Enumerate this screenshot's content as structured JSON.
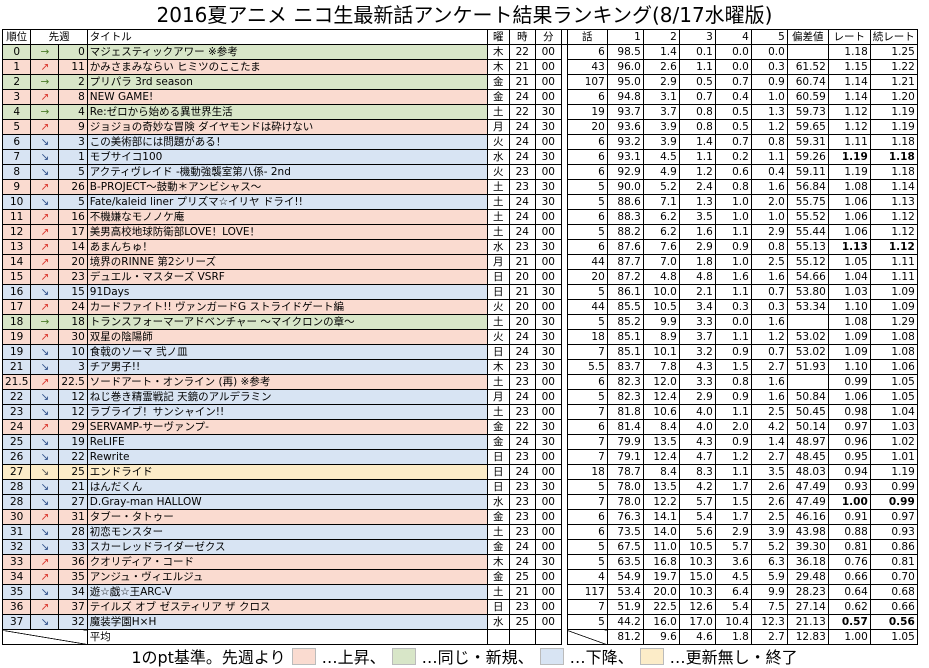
{
  "title": "2016夏アニメ ニコ生最新話アンケート結果ランキング(8/17水曜版)",
  "columns": {
    "rank": "順位",
    "prev": "先週",
    "title": "タイトル",
    "day": "曜",
    "hour": "時",
    "minute": "分",
    "episode": "話",
    "c1": "1",
    "c2": "2",
    "c3": "3",
    "c4": "4",
    "c5": "5",
    "deviation": "偏差値",
    "rate": "レート",
    "cont_rate": "続レート"
  },
  "colors": {
    "up": "#fadbd0",
    "same": "#d8e6c8",
    "down": "#d8e4f3",
    "none": "#fcecc8"
  },
  "rows": [
    {
      "s": "same",
      "rk": "0",
      "ar": "→",
      "pr": "0",
      "ti": "マジェスティックアワー ※参考",
      "d": "木",
      "h": "22",
      "m": "00",
      "ep": "6",
      "v1": "98.5",
      "v2": "1.4",
      "v3": "0.1",
      "v4": "0.0",
      "v5": "0.0",
      "dv": "",
      "rt": "1.18",
      "cr": "1.25"
    },
    {
      "s": "up",
      "rk": "1",
      "ar": "↗",
      "pr": "11",
      "ti": "かみさまみならい ヒミツのここたま",
      "d": "木",
      "h": "21",
      "m": "00",
      "ep": "43",
      "v1": "96.0",
      "v2": "2.6",
      "v3": "1.1",
      "v4": "0.0",
      "v5": "0.3",
      "dv": "61.52",
      "rt": "1.15",
      "cr": "1.22"
    },
    {
      "s": "same",
      "rk": "2",
      "ar": "→",
      "pr": "2",
      "ti": "プリパラ 3rd season",
      "d": "金",
      "h": "21",
      "m": "00",
      "ep": "107",
      "v1": "95.0",
      "v2": "2.9",
      "v3": "0.5",
      "v4": "0.7",
      "v5": "0.9",
      "dv": "60.74",
      "rt": "1.14",
      "cr": "1.21"
    },
    {
      "s": "up",
      "rk": "3",
      "ar": "↗",
      "pr": "8",
      "ti": "NEW GAME!",
      "d": "金",
      "h": "24",
      "m": "00",
      "ep": "6",
      "v1": "94.8",
      "v2": "3.1",
      "v3": "0.7",
      "v4": "0.4",
      "v5": "1.0",
      "dv": "60.59",
      "rt": "1.14",
      "cr": "1.20"
    },
    {
      "s": "same",
      "rk": "4",
      "ar": "→",
      "pr": "4",
      "ti": "Re:ゼロから始める異世界生活",
      "d": "土",
      "h": "22",
      "m": "30",
      "ep": "19",
      "v1": "93.7",
      "v2": "3.7",
      "v3": "0.8",
      "v4": "0.5",
      "v5": "1.3",
      "dv": "59.73",
      "rt": "1.12",
      "cr": "1.19"
    },
    {
      "s": "up",
      "rk": "5",
      "ar": "↗",
      "pr": "9",
      "ti": "ジョジョの奇妙な冒険 ダイヤモンドは砕けない",
      "d": "月",
      "h": "24",
      "m": "30",
      "ep": "20",
      "v1": "93.6",
      "v2": "3.9",
      "v3": "0.8",
      "v4": "0.5",
      "v5": "1.2",
      "dv": "59.65",
      "rt": "1.12",
      "cr": "1.19"
    },
    {
      "s": "down",
      "rk": "6",
      "ar": "↘",
      "pr": "3",
      "ti": "この美術部には問題がある！",
      "d": "火",
      "h": "24",
      "m": "00",
      "ep": "6",
      "v1": "93.2",
      "v2": "3.9",
      "v3": "1.4",
      "v4": "0.7",
      "v5": "0.8",
      "dv": "59.31",
      "rt": "1.11",
      "cr": "1.18"
    },
    {
      "s": "down",
      "rk": "7",
      "ar": "↘",
      "pr": "1",
      "ti": "モブサイコ100",
      "d": "水",
      "h": "24",
      "m": "30",
      "ep": "6",
      "v1": "93.1",
      "v2": "4.5",
      "v3": "1.1",
      "v4": "0.2",
      "v5": "1.1",
      "dv": "59.26",
      "rt": "1.19",
      "cr": "1.18",
      "bold": true
    },
    {
      "s": "down",
      "rk": "8",
      "ar": "↘",
      "pr": "5",
      "ti": "アクティヴレイド -機動強襲室第八係- 2nd",
      "d": "火",
      "h": "23",
      "m": "00",
      "ep": "6",
      "v1": "92.9",
      "v2": "4.9",
      "v3": "1.2",
      "v4": "0.6",
      "v5": "0.4",
      "dv": "59.11",
      "rt": "1.19",
      "cr": "1.18"
    },
    {
      "s": "up",
      "rk": "9",
      "ar": "↗",
      "pr": "26",
      "ti": "B-PROJECT～鼓動＊アンビシャス～",
      "d": "土",
      "h": "23",
      "m": "30",
      "ep": "5",
      "v1": "90.0",
      "v2": "5.2",
      "v3": "2.4",
      "v4": "0.8",
      "v5": "1.6",
      "dv": "56.84",
      "rt": "1.08",
      "cr": "1.14"
    },
    {
      "s": "down",
      "rk": "10",
      "ar": "↘",
      "pr": "5",
      "ti": "Fate/kaleid liner プリズマ☆イリヤ ドライ!!",
      "d": "土",
      "h": "24",
      "m": "30",
      "ep": "5",
      "v1": "88.6",
      "v2": "7.1",
      "v3": "1.3",
      "v4": "1.0",
      "v5": "2.0",
      "dv": "55.75",
      "rt": "1.06",
      "cr": "1.13"
    },
    {
      "s": "up",
      "rk": "11",
      "ar": "↗",
      "pr": "16",
      "ti": "不機嫌なモノノケ庵",
      "d": "土",
      "h": "24",
      "m": "00",
      "ep": "6",
      "v1": "88.3",
      "v2": "6.2",
      "v3": "3.5",
      "v4": "1.0",
      "v5": "1.0",
      "dv": "55.52",
      "rt": "1.06",
      "cr": "1.12"
    },
    {
      "s": "up",
      "rk": "12",
      "ar": "↗",
      "pr": "17",
      "ti": "美男高校地球防衛部LOVE！LOVE！",
      "d": "土",
      "h": "24",
      "m": "00",
      "ep": "5",
      "v1": "88.2",
      "v2": "6.2",
      "v3": "1.6",
      "v4": "1.1",
      "v5": "2.9",
      "dv": "55.44",
      "rt": "1.06",
      "cr": "1.12"
    },
    {
      "s": "up",
      "rk": "13",
      "ar": "↗",
      "pr": "14",
      "ti": "あまんちゅ！",
      "d": "水",
      "h": "23",
      "m": "30",
      "ep": "6",
      "v1": "87.6",
      "v2": "7.6",
      "v3": "2.9",
      "v4": "0.9",
      "v5": "0.8",
      "dv": "55.13",
      "rt": "1.13",
      "cr": "1.12",
      "bold": true
    },
    {
      "s": "up",
      "rk": "14",
      "ar": "↗",
      "pr": "20",
      "ti": "境界のRINNE 第2シリーズ",
      "d": "月",
      "h": "21",
      "m": "00",
      "ep": "44",
      "v1": "87.7",
      "v2": "7.0",
      "v3": "1.8",
      "v4": "1.0",
      "v5": "2.5",
      "dv": "55.12",
      "rt": "1.05",
      "cr": "1.11"
    },
    {
      "s": "up",
      "rk": "15",
      "ar": "↗",
      "pr": "23",
      "ti": "デュエル・マスターズ VSRF",
      "d": "日",
      "h": "20",
      "m": "00",
      "ep": "20",
      "v1": "87.2",
      "v2": "4.8",
      "v3": "4.8",
      "v4": "1.6",
      "v5": "1.6",
      "dv": "54.66",
      "rt": "1.04",
      "cr": "1.11"
    },
    {
      "s": "down",
      "rk": "16",
      "ar": "↘",
      "pr": "15",
      "ti": "91Days",
      "d": "日",
      "h": "21",
      "m": "30",
      "ep": "5",
      "v1": "86.1",
      "v2": "10.0",
      "v3": "2.1",
      "v4": "1.1",
      "v5": "0.7",
      "dv": "53.80",
      "rt": "1.03",
      "cr": "1.09"
    },
    {
      "s": "up",
      "rk": "17",
      "ar": "↗",
      "pr": "24",
      "ti": "カードファイト!! ヴァンガードG ストライドゲート編",
      "d": "火",
      "h": "20",
      "m": "00",
      "ep": "44",
      "v1": "85.5",
      "v2": "10.5",
      "v3": "3.4",
      "v4": "0.3",
      "v5": "0.3",
      "dv": "53.34",
      "rt": "1.10",
      "cr": "1.09"
    },
    {
      "s": "same",
      "rk": "18",
      "ar": "→",
      "pr": "18",
      "ti": "トランスフォーマーアドベンチャー ～マイクロンの章～",
      "d": "土",
      "h": "20",
      "m": "30",
      "ep": "5",
      "v1": "85.2",
      "v2": "9.9",
      "v3": "3.3",
      "v4": "0.0",
      "v5": "1.6",
      "dv": "",
      "rt": "1.08",
      "cr": "1.29"
    },
    {
      "s": "up",
      "rk": "19",
      "ar": "↗",
      "pr": "30",
      "ti": "双星の陰陽師",
      "d": "火",
      "h": "24",
      "m": "30",
      "ep": "18",
      "v1": "85.1",
      "v2": "8.9",
      "v3": "3.7",
      "v4": "1.1",
      "v5": "1.2",
      "dv": "53.02",
      "rt": "1.09",
      "cr": "1.08"
    },
    {
      "s": "down",
      "rk": "19",
      "ar": "↘",
      "pr": "10",
      "ti": "食戟のソーマ 弐ノ皿",
      "d": "日",
      "h": "24",
      "m": "30",
      "ep": "7",
      "v1": "85.1",
      "v2": "10.1",
      "v3": "3.2",
      "v4": "0.9",
      "v5": "0.7",
      "dv": "53.02",
      "rt": "1.09",
      "cr": "1.08"
    },
    {
      "s": "down",
      "rk": "21",
      "ar": "↘",
      "pr": "3",
      "ti": "チア男子!!",
      "d": "木",
      "h": "23",
      "m": "30",
      "ep": "5.5",
      "v1": "83.7",
      "v2": "7.8",
      "v3": "4.3",
      "v4": "1.5",
      "v5": "2.7",
      "dv": "51.93",
      "rt": "1.10",
      "cr": "1.06"
    },
    {
      "s": "up",
      "rk": "21.5",
      "ar": "↗",
      "pr": "22.5",
      "ti": "ソードアート・オンライン (再) ※参考",
      "d": "土",
      "h": "23",
      "m": "00",
      "ep": "6",
      "v1": "82.3",
      "v2": "12.0",
      "v3": "3.3",
      "v4": "0.8",
      "v5": "1.6",
      "dv": "",
      "rt": "0.99",
      "cr": "1.05"
    },
    {
      "s": "down",
      "rk": "22",
      "ar": "↘",
      "pr": "12",
      "ti": "ねじ巻き精霊戦記 天鏡のアルデラミン",
      "d": "月",
      "h": "24",
      "m": "00",
      "ep": "5",
      "v1": "82.3",
      "v2": "12.4",
      "v3": "2.9",
      "v4": "0.9",
      "v5": "1.6",
      "dv": "50.84",
      "rt": "1.06",
      "cr": "1.05"
    },
    {
      "s": "down",
      "rk": "23",
      "ar": "↘",
      "pr": "12",
      "ti": "ラブライブ！サンシャイン!!",
      "d": "土",
      "h": "23",
      "m": "00",
      "ep": "7",
      "v1": "81.8",
      "v2": "10.6",
      "v3": "4.0",
      "v4": "1.1",
      "v5": "2.5",
      "dv": "50.45",
      "rt": "0.98",
      "cr": "1.04"
    },
    {
      "s": "up",
      "rk": "24",
      "ar": "↗",
      "pr": "29",
      "ti": "SERVAMP-サーヴァンプ-",
      "d": "金",
      "h": "22",
      "m": "30",
      "ep": "6",
      "v1": "81.4",
      "v2": "8.4",
      "v3": "4.0",
      "v4": "2.0",
      "v5": "4.2",
      "dv": "50.14",
      "rt": "0.97",
      "cr": "1.03"
    },
    {
      "s": "down",
      "rk": "25",
      "ar": "↘",
      "pr": "19",
      "ti": "ReLIFE",
      "d": "金",
      "h": "24",
      "m": "30",
      "ep": "7",
      "v1": "79.9",
      "v2": "13.5",
      "v3": "4.3",
      "v4": "0.9",
      "v5": "1.4",
      "dv": "48.97",
      "rt": "0.96",
      "cr": "1.02"
    },
    {
      "s": "down",
      "rk": "26",
      "ar": "↘",
      "pr": "22",
      "ti": "Rewrite",
      "d": "日",
      "h": "23",
      "m": "00",
      "ep": "7",
      "v1": "79.1",
      "v2": "12.4",
      "v3": "4.7",
      "v4": "1.2",
      "v5": "2.7",
      "dv": "48.45",
      "rt": "0.95",
      "cr": "1.01"
    },
    {
      "s": "none",
      "rk": "27",
      "ar": "↘",
      "pr": "25",
      "ti": "エンドライド",
      "d": "日",
      "h": "24",
      "m": "00",
      "ep": "18",
      "v1": "78.7",
      "v2": "8.4",
      "v3": "8.3",
      "v4": "1.1",
      "v5": "3.5",
      "dv": "48.03",
      "rt": "0.94",
      "cr": "1.19"
    },
    {
      "s": "down",
      "rk": "28",
      "ar": "↘",
      "pr": "21",
      "ti": "はんだくん",
      "d": "日",
      "h": "23",
      "m": "30",
      "ep": "5",
      "v1": "78.0",
      "v2": "13.5",
      "v3": "4.2",
      "v4": "1.7",
      "v5": "2.6",
      "dv": "47.49",
      "rt": "0.93",
      "cr": "0.99"
    },
    {
      "s": "down",
      "rk": "28",
      "ar": "↘",
      "pr": "27",
      "ti": "D.Gray-man HALLOW",
      "d": "水",
      "h": "23",
      "m": "00",
      "ep": "7",
      "v1": "78.0",
      "v2": "12.2",
      "v3": "5.7",
      "v4": "1.5",
      "v5": "2.6",
      "dv": "47.49",
      "rt": "1.00",
      "cr": "0.99",
      "bold": true
    },
    {
      "s": "up",
      "rk": "30",
      "ar": "↗",
      "pr": "31",
      "ti": "タブー・タトゥー",
      "d": "金",
      "h": "23",
      "m": "00",
      "ep": "6",
      "v1": "76.3",
      "v2": "14.1",
      "v3": "5.4",
      "v4": "1.7",
      "v5": "2.5",
      "dv": "46.16",
      "rt": "0.91",
      "cr": "0.97"
    },
    {
      "s": "down",
      "rk": "31",
      "ar": "↘",
      "pr": "28",
      "ti": "初恋モンスター",
      "d": "土",
      "h": "23",
      "m": "00",
      "ep": "6",
      "v1": "73.5",
      "v2": "14.0",
      "v3": "5.6",
      "v4": "2.9",
      "v5": "3.9",
      "dv": "43.98",
      "rt": "0.88",
      "cr": "0.93"
    },
    {
      "s": "down",
      "rk": "32",
      "ar": "↘",
      "pr": "33",
      "ti": "スカーレッドライダーゼクス",
      "d": "金",
      "h": "24",
      "m": "00",
      "ep": "5",
      "v1": "67.5",
      "v2": "11.0",
      "v3": "10.5",
      "v4": "5.7",
      "v5": "5.2",
      "dv": "39.30",
      "rt": "0.81",
      "cr": "0.86"
    },
    {
      "s": "up",
      "rk": "33",
      "ar": "↗",
      "pr": "36",
      "ti": "クオリディア・コード",
      "d": "木",
      "h": "24",
      "m": "30",
      "ep": "5",
      "v1": "63.5",
      "v2": "16.8",
      "v3": "10.3",
      "v4": "3.6",
      "v5": "6.3",
      "dv": "36.18",
      "rt": "0.76",
      "cr": "0.81"
    },
    {
      "s": "up",
      "rk": "34",
      "ar": "↗",
      "pr": "35",
      "ti": "アンジュ・ヴィエルジュ",
      "d": "金",
      "h": "25",
      "m": "00",
      "ep": "4",
      "v1": "54.9",
      "v2": "19.7",
      "v3": "15.0",
      "v4": "4.5",
      "v5": "5.9",
      "dv": "29.48",
      "rt": "0.66",
      "cr": "0.70"
    },
    {
      "s": "down",
      "rk": "35",
      "ar": "↘",
      "pr": "34",
      "ti": "遊☆戯☆王ARC-V",
      "d": "土",
      "h": "21",
      "m": "00",
      "ep": "117",
      "v1": "53.4",
      "v2": "20.0",
      "v3": "10.3",
      "v4": "6.4",
      "v5": "9.9",
      "dv": "28.23",
      "rt": "0.64",
      "cr": "0.68"
    },
    {
      "s": "up",
      "rk": "36",
      "ar": "↗",
      "pr": "37",
      "ti": "テイルズ オブ ゼスティリア ザ クロス",
      "d": "日",
      "h": "23",
      "m": "00",
      "ep": "7",
      "v1": "51.9",
      "v2": "22.5",
      "v3": "12.6",
      "v4": "5.4",
      "v5": "7.5",
      "dv": "27.14",
      "rt": "0.62",
      "cr": "0.66"
    },
    {
      "s": "down",
      "rk": "37",
      "ar": "↘",
      "pr": "32",
      "ti": "魔装学園H×H",
      "d": "水",
      "h": "25",
      "m": "00",
      "ep": "5",
      "v1": "44.2",
      "v2": "16.0",
      "v3": "17.0",
      "v4": "10.4",
      "v5": "12.3",
      "dv": "21.13",
      "rt": "0.57",
      "cr": "0.56",
      "bold": true
    }
  ],
  "average": {
    "label": "平均",
    "v1": "81.2",
    "v2": "9.6",
    "v3": "4.6",
    "v4": "1.8",
    "v5": "2.7",
    "dv": "12.83",
    "rt": "1.00",
    "cr": "1.05"
  },
  "footer": {
    "prefix": "1のpt基準。先週より",
    "up": "…上昇、",
    "same": "…同じ・新規、",
    "down": "…下降、",
    "none": "…更新無し・終了"
  }
}
